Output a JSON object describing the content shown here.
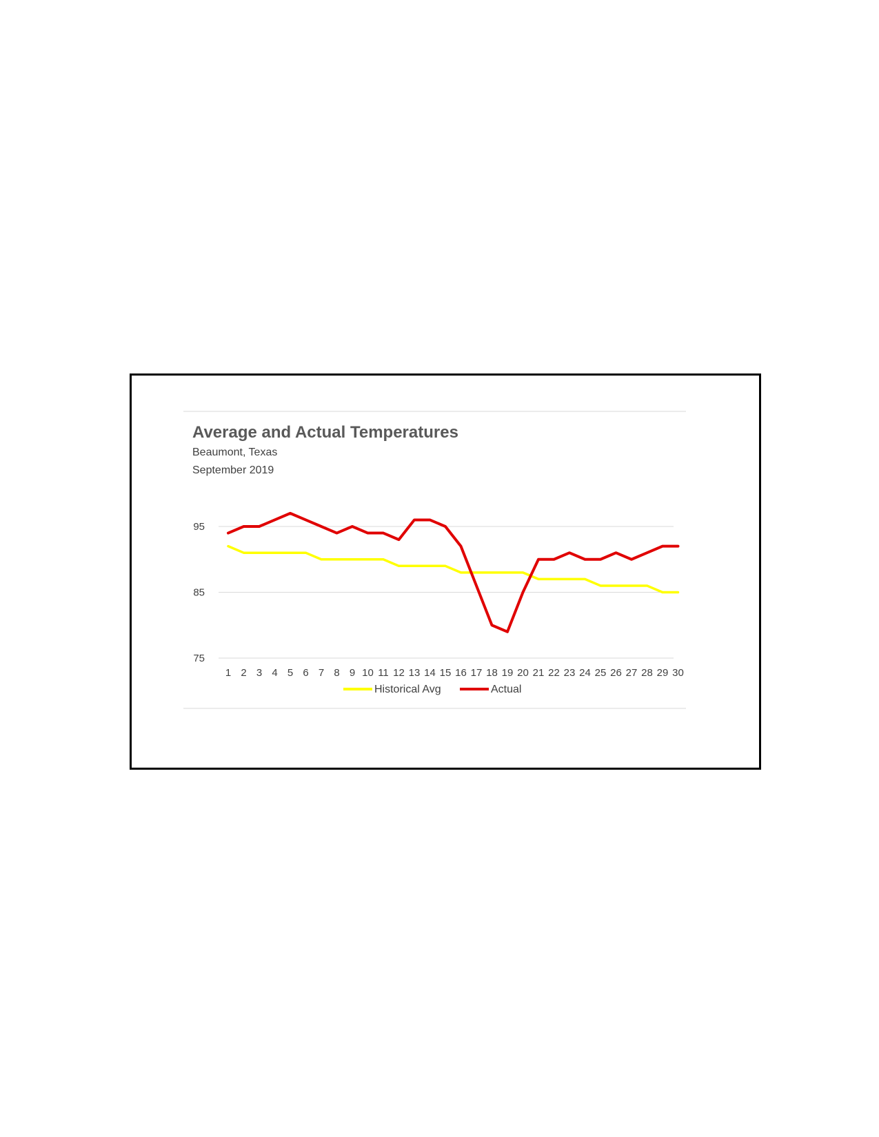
{
  "chart_data": {
    "type": "line",
    "title": "Average and Actual Temperatures",
    "subtitle_lines": [
      "Beaumont, Texas",
      "September 2019"
    ],
    "x": [
      "1",
      "2",
      "3",
      "4",
      "5",
      "6",
      "7",
      "8",
      "9",
      "10",
      "11",
      "12",
      "13",
      "14",
      "15",
      "16",
      "17",
      "18",
      "19",
      "20",
      "21",
      "22",
      "23",
      "24",
      "25",
      "26",
      "27",
      "28",
      "29",
      "30"
    ],
    "y_ticks": [
      "95",
      "85",
      "75"
    ],
    "ylim": [
      75,
      95
    ],
    "grid": true,
    "legend_position": "bottom",
    "series": [
      {
        "name": "Historical Avg",
        "color": "#ffff00",
        "values": [
          92,
          91,
          91,
          91,
          91,
          91,
          90,
          90,
          90,
          90,
          90,
          89,
          89,
          89,
          89,
          88,
          88,
          88,
          88,
          88,
          87,
          87,
          87,
          87,
          86,
          86,
          86,
          86,
          85,
          85
        ]
      },
      {
        "name": "Actual",
        "color": "#e00000",
        "values": [
          94,
          95,
          95,
          96,
          97,
          96,
          95,
          94,
          95,
          94,
          94,
          93,
          96,
          96,
          95,
          92,
          86,
          80,
          79,
          85,
          90,
          90,
          91,
          90,
          90,
          91,
          90,
          91,
          92,
          92
        ]
      }
    ]
  }
}
